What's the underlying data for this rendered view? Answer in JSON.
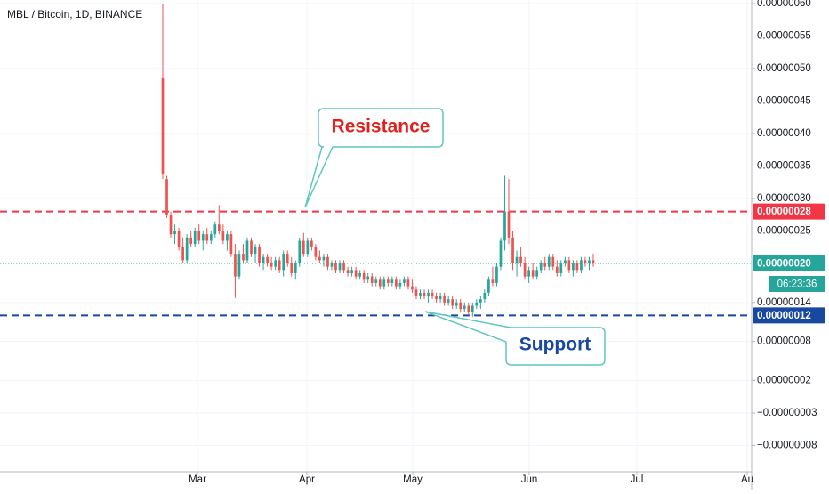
{
  "chart_data": {
    "type": "candlestick",
    "title": "MBL / Bitcoin, 1D, BINANCE",
    "up_color": "#26a69a",
    "down_color": "#ef5350",
    "ylim": [
      -1.205e-07,
      6.055e-07
    ],
    "yticks": [
      {
        "value": 6e-07,
        "label": "0.00000060"
      },
      {
        "value": 5.5e-07,
        "label": "0.00000055"
      },
      {
        "value": 5e-07,
        "label": "0.00000050"
      },
      {
        "value": 4.5e-07,
        "label": "0.00000045"
      },
      {
        "value": 4e-07,
        "label": "0.00000040"
      },
      {
        "value": 3.5e-07,
        "label": "0.00000035"
      },
      {
        "value": 3e-07,
        "label": "0.00000030"
      },
      {
        "value": 2.5e-07,
        "label": "0.00000025"
      },
      {
        "value": 1.4e-07,
        "label": "0.00000014"
      },
      {
        "value": 8e-08,
        "label": "0.00000008"
      },
      {
        "value": 2e-08,
        "label": "0.00000002"
      },
      {
        "value": -3e-08,
        "label": "−0.00000003"
      },
      {
        "value": -8e-08,
        "label": "−0.00000008"
      }
    ],
    "xticks": [
      "Mar",
      "Apr",
      "May",
      "Jun",
      "Jul",
      "Au"
    ],
    "grid": true,
    "levels": [
      {
        "value": 2.8e-07,
        "label": "0.00000028",
        "color": "#f23645",
        "style": "dashed"
      },
      {
        "value": 2e-07,
        "label": "0.00000020",
        "color": "#26a69a",
        "style": "dotted"
      },
      {
        "value": 1.2e-07,
        "label": "0.00000012",
        "color": "#1848a0",
        "style": "dashed"
      }
    ],
    "countdown": "06:23:36",
    "annotations": {
      "resistance": "Resistance",
      "support": "Support"
    },
    "candles": [
      [
        4.85e-07,
        6e-07,
        3.3e-07,
        3.38e-07
      ],
      [
        3.3e-07,
        3.35e-07,
        2.7e-07,
        2.75e-07
      ],
      [
        2.75e-07,
        2.8e-07,
        2.4e-07,
        2.45e-07
      ],
      [
        2.45e-07,
        2.6e-07,
        2.3e-07,
        2.5e-07
      ],
      [
        2.5e-07,
        2.55e-07,
        2.2e-07,
        2.25e-07
      ],
      [
        2.25e-07,
        2.4e-07,
        2e-07,
        2.05e-07
      ],
      [
        2.05e-07,
        2.45e-07,
        2e-07,
        2.4e-07
      ],
      [
        2.4e-07,
        2.5e-07,
        2.25e-07,
        2.3e-07
      ],
      [
        2.3e-07,
        2.55e-07,
        2.25e-07,
        2.5e-07
      ],
      [
        2.5e-07,
        2.6e-07,
        2.3e-07,
        2.35e-07
      ],
      [
        2.35e-07,
        2.5e-07,
        2.2e-07,
        2.45e-07
      ],
      [
        2.45e-07,
        2.55e-07,
        2.3e-07,
        2.35e-07
      ],
      [
        2.35e-07,
        2.5e-07,
        2.3e-07,
        2.45e-07
      ],
      [
        2.45e-07,
        2.65e-07,
        2.4e-07,
        2.6e-07
      ],
      [
        2.6e-07,
        2.9e-07,
        2.45e-07,
        2.5e-07
      ],
      [
        2.5e-07,
        2.6e-07,
        2.3e-07,
        2.35e-07
      ],
      [
        2.35e-07,
        2.5e-07,
        2.2e-07,
        2.45e-07
      ],
      [
        2.45e-07,
        2.5e-07,
        2.1e-07,
        2.15e-07
      ],
      [
        2.15e-07,
        2.3e-07,
        1.47e-07,
        1.8e-07
      ],
      [
        1.8e-07,
        2.2e-07,
        1.75e-07,
        2.15e-07
      ],
      [
        2.15e-07,
        2.3e-07,
        2e-07,
        2.05e-07
      ],
      [
        2.05e-07,
        2.4e-07,
        2e-07,
        2.35e-07
      ],
      [
        2.35e-07,
        2.4e-07,
        2.1e-07,
        2.15e-07
      ],
      [
        2.15e-07,
        2.3e-07,
        2e-07,
        2.25e-07
      ],
      [
        2.25e-07,
        2.3e-07,
        1.95e-07,
        2e-07
      ],
      [
        2e-07,
        2.15e-07,
        1.9e-07,
        2.1e-07
      ],
      [
        2.1e-07,
        2.15e-07,
        1.95e-07,
        2e-07
      ],
      [
        2e-07,
        2.1e-07,
        1.9e-07,
        1.95e-07
      ],
      [
        1.95e-07,
        2.1e-07,
        1.9e-07,
        2.05e-07
      ],
      [
        2.05e-07,
        2.1e-07,
        1.85e-07,
        1.9e-07
      ],
      [
        1.9e-07,
        2.2e-07,
        1.8e-07,
        2.15e-07
      ],
      [
        2.15e-07,
        2.2e-07,
        1.95e-07,
        2e-07
      ],
      [
        2e-07,
        2.1e-07,
        1.8e-07,
        1.85e-07
      ],
      [
        1.85e-07,
        2.05e-07,
        1.75e-07,
        2e-07
      ],
      [
        2e-07,
        2.4e-07,
        1.95e-07,
        2.35e-07
      ],
      [
        2.35e-07,
        2.47e-07,
        2.1e-07,
        2.15e-07
      ],
      [
        2.15e-07,
        2.4e-07,
        2.1e-07,
        2.35e-07
      ],
      [
        2.35e-07,
        2.4e-07,
        2.2e-07,
        2.25e-07
      ],
      [
        2.25e-07,
        2.3e-07,
        2.05e-07,
        2.1e-07
      ],
      [
        2.1e-07,
        2.2e-07,
        2e-07,
        2.05e-07
      ],
      [
        2.05e-07,
        2.15e-07,
        1.95e-07,
        2.1e-07
      ],
      [
        2.1e-07,
        2.15e-07,
        1.9e-07,
        1.95e-07
      ],
      [
        1.95e-07,
        2.05e-07,
        1.9e-07,
        2e-07
      ],
      [
        2e-07,
        2.05e-07,
        1.85e-07,
        1.9e-07
      ],
      [
        1.9e-07,
        2.05e-07,
        1.85e-07,
        2e-07
      ],
      [
        2e-07,
        2.05e-07,
        1.85e-07,
        1.9e-07
      ],
      [
        1.9e-07,
        1.95e-07,
        1.8e-07,
        1.85e-07
      ],
      [
        1.85e-07,
        1.95e-07,
        1.8e-07,
        1.9e-07
      ],
      [
        1.9e-07,
        1.95e-07,
        1.75e-07,
        1.8e-07
      ],
      [
        1.8e-07,
        1.9e-07,
        1.75e-07,
        1.85e-07
      ],
      [
        1.85e-07,
        1.9e-07,
        1.7e-07,
        1.75e-07
      ],
      [
        1.75e-07,
        1.85e-07,
        1.7e-07,
        1.8e-07
      ],
      [
        1.8e-07,
        1.85e-07,
        1.65e-07,
        1.7e-07
      ],
      [
        1.7e-07,
        1.8e-07,
        1.65e-07,
        1.75e-07
      ],
      [
        1.75e-07,
        1.8e-07,
        1.6e-07,
        1.65e-07
      ],
      [
        1.65e-07,
        1.8e-07,
        1.6e-07,
        1.75e-07
      ],
      [
        1.75e-07,
        1.8e-07,
        1.65e-07,
        1.7e-07
      ],
      [
        1.7e-07,
        1.8e-07,
        1.65e-07,
        1.75e-07
      ],
      [
        1.75e-07,
        1.8e-07,
        1.6e-07,
        1.65e-07
      ],
      [
        1.65e-07,
        1.75e-07,
        1.6e-07,
        1.7e-07
      ],
      [
        1.7e-07,
        1.8e-07,
        1.65e-07,
        1.75e-07
      ],
      [
        1.75e-07,
        1.8e-07,
        1.6e-07,
        1.65e-07
      ],
      [
        1.65e-07,
        1.75e-07,
        1.55e-07,
        1.6e-07
      ],
      [
        1.6e-07,
        1.65e-07,
        1.45e-07,
        1.5e-07
      ],
      [
        1.5e-07,
        1.6e-07,
        1.45e-07,
        1.55e-07
      ],
      [
        1.55e-07,
        1.6e-07,
        1.45e-07,
        1.5e-07
      ],
      [
        1.5e-07,
        1.6e-07,
        1.4e-07,
        1.55e-07
      ],
      [
        1.55e-07,
        1.6e-07,
        1.45e-07,
        1.5e-07
      ],
      [
        1.5e-07,
        1.55e-07,
        1.4e-07,
        1.45e-07
      ],
      [
        1.45e-07,
        1.55e-07,
        1.4e-07,
        1.5e-07
      ],
      [
        1.5e-07,
        1.55e-07,
        1.35e-07,
        1.4e-07
      ],
      [
        1.4e-07,
        1.5e-07,
        1.35e-07,
        1.45e-07
      ],
      [
        1.45e-07,
        1.5e-07,
        1.3e-07,
        1.35e-07
      ],
      [
        1.35e-07,
        1.45e-07,
        1.3e-07,
        1.4e-07
      ],
      [
        1.4e-07,
        1.45e-07,
        1.25e-07,
        1.3e-07
      ],
      [
        1.3e-07,
        1.4e-07,
        1.25e-07,
        1.35e-07
      ],
      [
        1.35e-07,
        1.4e-07,
        1.2e-07,
        1.25e-07
      ],
      [
        1.25e-07,
        1.4e-07,
        1.18e-07,
        1.35e-07
      ],
      [
        1.35e-07,
        1.45e-07,
        1.3e-07,
        1.4e-07
      ],
      [
        1.4e-07,
        1.5e-07,
        1.3e-07,
        1.45e-07
      ],
      [
        1.45e-07,
        1.6e-07,
        1.4e-07,
        1.55e-07
      ],
      [
        1.55e-07,
        1.8e-07,
        1.5e-07,
        1.75e-07
      ],
      [
        1.75e-07,
        1.95e-07,
        1.65e-07,
        1.7e-07
      ],
      [
        1.7e-07,
        2e-07,
        1.65e-07,
        1.95e-07
      ],
      [
        1.95e-07,
        2.4e-07,
        1.9e-07,
        2.35e-07
      ],
      [
        2.35e-07,
        3.35e-07,
        2.2e-07,
        2.8e-07
      ],
      [
        2.8e-07,
        3.3e-07,
        2.3e-07,
        2.4e-07
      ],
      [
        2.4e-07,
        2.5e-07,
        1.9e-07,
        2e-07
      ],
      [
        2e-07,
        2.2e-07,
        1.8e-07,
        2.1e-07
      ],
      [
        2.1e-07,
        2.25e-07,
        1.95e-07,
        2e-07
      ],
      [
        2e-07,
        2.1e-07,
        1.75e-07,
        1.8e-07
      ],
      [
        1.8e-07,
        1.95e-07,
        1.7e-07,
        1.9e-07
      ],
      [
        1.9e-07,
        2e-07,
        1.75e-07,
        1.8e-07
      ],
      [
        1.8e-07,
        1.95e-07,
        1.75e-07,
        1.9e-07
      ],
      [
        1.9e-07,
        2.05e-07,
        1.85e-07,
        2e-07
      ],
      [
        2e-07,
        2.1e-07,
        1.9e-07,
        1.95e-07
      ],
      [
        1.95e-07,
        2.15e-07,
        1.9e-07,
        2.1e-07
      ],
      [
        2.1e-07,
        2.15e-07,
        1.9e-07,
        1.95e-07
      ],
      [
        1.95e-07,
        2.05e-07,
        1.8e-07,
        1.85e-07
      ],
      [
        1.85e-07,
        2.05e-07,
        1.8e-07,
        2e-07
      ],
      [
        2e-07,
        2.1e-07,
        1.95e-07,
        2.05e-07
      ],
      [
        2.05e-07,
        2.1e-07,
        1.85e-07,
        1.9e-07
      ],
      [
        1.9e-07,
        2.05e-07,
        1.8e-07,
        2e-07
      ],
      [
        2e-07,
        2.05e-07,
        1.85e-07,
        1.9e-07
      ],
      [
        1.9e-07,
        2.1e-07,
        1.85e-07,
        2.05e-07
      ],
      [
        2.05e-07,
        2.1e-07,
        1.95e-07,
        2e-07
      ],
      [
        2e-07,
        2.1e-07,
        1.9e-07,
        2.05e-07
      ],
      [
        2.05e-07,
        2.15e-07,
        1.95e-07,
        2e-07
      ]
    ]
  }
}
